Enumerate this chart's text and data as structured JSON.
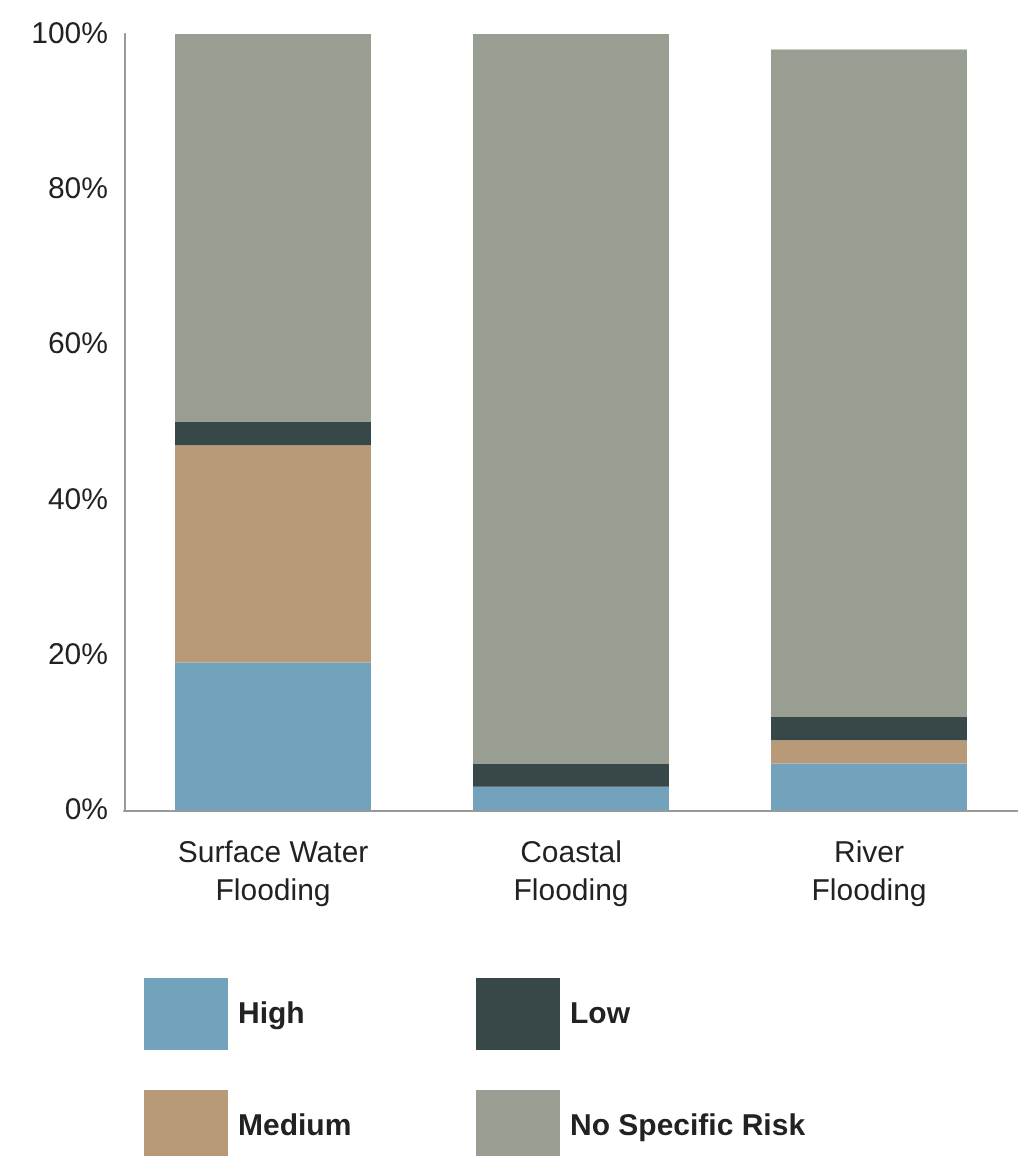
{
  "chart_data": {
    "type": "bar",
    "stacked": true,
    "categories": [
      "Surface Water\nFlooding",
      "Coastal\nFlooding",
      "River\nFlooding"
    ],
    "series": [
      {
        "name": "High",
        "color": "#73a2bd",
        "values": [
          19,
          3,
          6
        ]
      },
      {
        "name": "Medium",
        "color": "#b89a78",
        "values": [
          28,
          0,
          3
        ]
      },
      {
        "name": "Low",
        "color": "#384848",
        "values": [
          3,
          3,
          3
        ]
      },
      {
        "name": "No Specific Risk",
        "color": "#999e92",
        "values": [
          50,
          94,
          86
        ]
      }
    ],
    "ylim": [
      0,
      100
    ],
    "yticks": [
      {
        "value": 0,
        "label": "0%"
      },
      {
        "value": 20,
        "label": "20%"
      },
      {
        "value": 40,
        "label": "40%"
      },
      {
        "value": 60,
        "label": "60%"
      },
      {
        "value": 80,
        "label": "80%"
      },
      {
        "value": 100,
        "label": "100%"
      }
    ],
    "grid": false,
    "legend": "bottom"
  }
}
